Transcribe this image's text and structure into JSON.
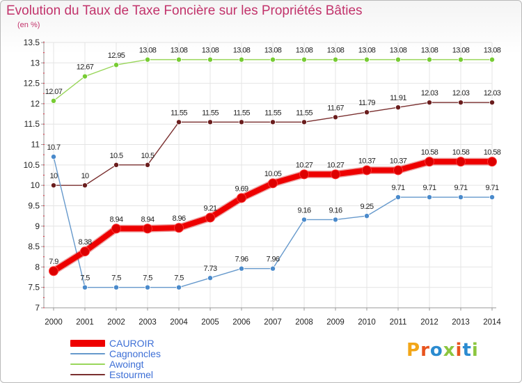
{
  "title": "Evolution du Taux de Taxe Foncière sur les Propriétés Bâties",
  "unit": "(en %)",
  "logo": {
    "text": "Proxiti",
    "letters": [
      {
        "ch": "P",
        "color": "#f2a618"
      },
      {
        "ch": "r",
        "color": "#e8541e"
      },
      {
        "ch": "o",
        "color": "#2b8bd0"
      },
      {
        "ch": "x",
        "color": "#8cc63f"
      },
      {
        "ch": "i",
        "color": "#e8541e"
      },
      {
        "ch": "t",
        "color": "#2b8bd0"
      },
      {
        "ch": "i",
        "color": "#8cc63f"
      }
    ]
  },
  "chart_data": {
    "type": "line",
    "title": "Evolution du Taux de Taxe Foncière sur les Propriétés Bâties",
    "ylabel": "(en %)",
    "xlabel": "",
    "ylim": [
      7,
      13.5
    ],
    "yticks": [
      "7",
      "7.5",
      "8",
      "8.5",
      "9",
      "9.5",
      "10",
      "10.5",
      "11",
      "11.5",
      "12",
      "12.5",
      "13",
      "13.5"
    ],
    "grid": true,
    "legend_position": "bottom-left",
    "categories": [
      "2000",
      "2001",
      "2002",
      "2003",
      "2004",
      "2005",
      "2006",
      "2007",
      "2008",
      "2009",
      "2010",
      "2011",
      "2012",
      "2013",
      "2014"
    ],
    "series": [
      {
        "name": "Awoingt",
        "color": "#99d65a",
        "marker": "#77cc33",
        "thick": false,
        "values": [
          12.07,
          12.67,
          12.95,
          13.08,
          13.08,
          13.08,
          13.08,
          13.08,
          13.08,
          13.08,
          13.08,
          13.08,
          13.08,
          13.08,
          13.08
        ],
        "labels": [
          "12.07",
          "12.67",
          "12.95",
          "13.08",
          "13.08",
          "13.08",
          "13.08",
          "13.08",
          "13.08",
          "13.08",
          "13.08",
          "13.08",
          "13.08",
          "13.08",
          "13.08"
        ]
      },
      {
        "name": "Estourmel",
        "color": "#7a2f2f",
        "marker": "#6a1d1d",
        "thick": false,
        "values": [
          10,
          10,
          10.5,
          10.5,
          11.55,
          11.55,
          11.55,
          11.55,
          11.55,
          11.67,
          11.79,
          11.91,
          12.03,
          12.03,
          12.03
        ],
        "labels": [
          "10",
          "10",
          "10.5",
          "10.5",
          "11.55",
          "11.55",
          "11.55",
          "11.55",
          "11.55",
          "11.67",
          "11.79",
          "11.91",
          "12.03",
          "12.03",
          "12.03"
        ]
      },
      {
        "name": "Cagnoncles",
        "color": "#6699cc",
        "marker": "#4a8acb",
        "thick": false,
        "values": [
          10.7,
          7.5,
          7.5,
          7.5,
          7.5,
          7.73,
          7.96,
          7.96,
          9.16,
          9.16,
          9.25,
          9.71,
          9.71,
          9.71,
          9.71
        ],
        "labels": [
          "10.7",
          "7.5",
          "7.5",
          "7.5",
          "7.5",
          "7.73",
          "7.96",
          "7.96",
          "9.16",
          "9.16",
          "9.25",
          "9.71",
          "9.71",
          "9.71",
          "9.71"
        ]
      },
      {
        "name": "CAUROIR",
        "color": "#ee0000",
        "marker": "#dd0000",
        "thick": true,
        "values": [
          7.9,
          8.38,
          8.94,
          8.94,
          8.96,
          9.21,
          9.69,
          10.05,
          10.27,
          10.27,
          10.37,
          10.37,
          10.58,
          10.58,
          10.58
        ],
        "labels": [
          "7.9",
          "8.38",
          "8.94",
          "8.94",
          "8.96",
          "9.21",
          "9.69",
          "10.05",
          "10.27",
          "10.27",
          "10.37",
          "10.37",
          "10.58",
          "10.58",
          "10.58"
        ]
      }
    ],
    "legend": [
      {
        "name": "CAUROIR",
        "color": "#ee0000",
        "text_color": "#3d6fd6",
        "thick": true
      },
      {
        "name": "Cagnoncles",
        "color": "#6699cc",
        "text_color": "#3d6fd6",
        "thick": false
      },
      {
        "name": "Awoingt",
        "color": "#99d65a",
        "text_color": "#3d6fd6",
        "thick": false
      },
      {
        "name": "Estourmel",
        "color": "#7a2f2f",
        "text_color": "#3d6fd6",
        "thick": false
      }
    ]
  }
}
